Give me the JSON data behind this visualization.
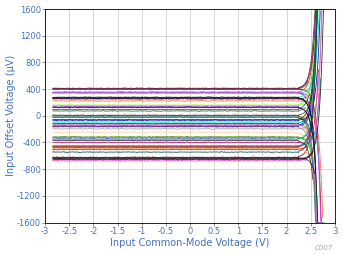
{
  "title": "",
  "xlabel": "Input Common-Mode Voltage (V)",
  "ylabel": "Input Offset Voltage (μV)",
  "xlim": [
    -3,
    3
  ],
  "ylim": [
    -1600,
    1600
  ],
  "xticks": [
    -3,
    -2.5,
    -2,
    -1.5,
    -1,
    -0.5,
    0,
    0.5,
    1,
    1.5,
    2,
    2.5,
    3
  ],
  "yticks": [
    -1600,
    -1200,
    -800,
    -400,
    0,
    400,
    800,
    1200,
    1600
  ],
  "num_curves": 60,
  "flat_start": -2.85,
  "flat_end": 2.25,
  "rail_end": 2.85,
  "flat_val_min": -680,
  "flat_val_max": 430,
  "watermark": "C007",
  "bg_color": "#ffffff",
  "grid_color": "#c8c8c8",
  "axis_label_color": "#4472c4",
  "tick_label_color": "#4472c4",
  "spine_color": "#000000"
}
